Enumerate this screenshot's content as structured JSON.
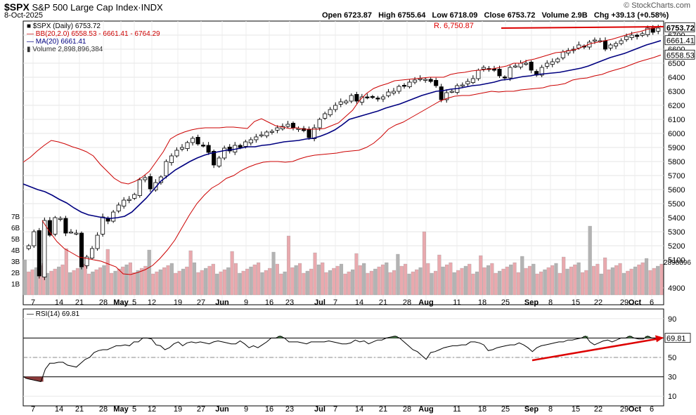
{
  "header": {
    "symbol": "$SPX",
    "name": "S&P 500 Large Cap Index",
    "exchange": "INDX",
    "date": "8-Oct-2025",
    "open": "6723.87",
    "high": "6755.64",
    "low": "6718.09",
    "close": "6753.72",
    "volume": "2.9B",
    "change": "+39.13 (+0.58%)",
    "brand": "© StockCharts.com"
  },
  "legend": {
    "price": "$SPX (Daily) 6753.72",
    "bb": "BB(20,2.0) 6558.53 - 6661.41 - 6764.29",
    "ma": "MA(20) 6661.41",
    "volume": "Volume 2,898,896,384"
  },
  "annotations": {
    "resistance_label": "R. 6,750.87"
  },
  "colors": {
    "bb": "#cc0000",
    "ma": "#000080",
    "vol_up": "#e9a9ae",
    "vol_down": "#b3b3b3",
    "rsi_over": "#4a7c4a",
    "rsi_under": "#8b3a3a",
    "annotation": "#dd0000"
  },
  "chart_data": [
    {
      "type": "candlestick",
      "title": "$SPX S&P 500 Large Cap Index",
      "ylim": [
        4780,
        6800
      ],
      "yticks": [
        4900,
        5100,
        5200,
        5300,
        5400,
        5500,
        5600,
        5700,
        5800,
        5900,
        6000,
        6100,
        6200,
        6300,
        6400,
        6500,
        6600,
        6700
      ],
      "value_labels": [
        "6753.72",
        "6661.41",
        "6558.53"
      ],
      "vol_ticks": [
        "1B",
        "2B",
        "3B",
        "4B",
        "5B",
        "6B",
        "7B"
      ],
      "vol_right_label": "2898896",
      "x_tick_labels": [
        "7",
        "14",
        "21",
        "28",
        "May",
        "5",
        "12",
        "19",
        "27",
        "Jun",
        "9",
        "16",
        "23",
        "Jul",
        "7",
        "14",
        "21",
        "28",
        "Aug",
        "11",
        "18",
        "25",
        "Sep",
        "8",
        "15",
        "22",
        "29",
        "Oct",
        "6"
      ],
      "series_close": [
        5200,
        5300,
        4985,
        5380,
        5275,
        5400,
        5395,
        5290,
        5298,
        5290,
        5050,
        5120,
        5180,
        5275,
        5405,
        5375,
        5440,
        5490,
        5525,
        5530,
        5565,
        5670,
        5685,
        5605,
        5650,
        5690,
        5800,
        5840,
        5880,
        5900,
        5935,
        5965,
        5925,
        5915,
        5865,
        5775,
        5825,
        5895,
        5875,
        5915,
        5900,
        5940,
        5955,
        5975,
        5990,
        6010,
        6015,
        6040,
        6050,
        6065,
        6040,
        6035,
        6020,
        5970,
        6040,
        6100,
        6140,
        6170,
        6200,
        6225,
        6230,
        6270,
        6230,
        6260,
        6255,
        6260,
        6245,
        6260,
        6295,
        6300,
        6335,
        6340,
        6365,
        6380,
        6390,
        6385,
        6370,
        6340,
        6240,
        6290,
        6300,
        6340,
        6345,
        6370,
        6390,
        6450,
        6470,
        6460,
        6450,
        6410,
        6395,
        6470,
        6480,
        6500,
        6500,
        6450,
        6415,
        6470,
        6500,
        6510,
        6530,
        6580,
        6590,
        6600,
        6630,
        6615,
        6650,
        6665,
        6660,
        6600,
        6630,
        6640,
        6660,
        6690,
        6700,
        6690,
        6710,
        6750,
        6720,
        6750
      ],
      "bb_upper": [
        5795,
        5830,
        5875,
        5915,
        5950,
        5940,
        5925,
        5905,
        5890,
        5870,
        5840,
        5780,
        5730,
        5680,
        5650,
        5640,
        5660,
        5690,
        5730,
        5800,
        5870,
        5960,
        5990,
        6010,
        6025,
        6035,
        6040,
        6040,
        6040,
        6045,
        6045,
        6040,
        6035,
        6085,
        6105,
        6080,
        6055,
        6045,
        6035,
        6040,
        6030,
        6030,
        6030,
        6035,
        6055,
        6075,
        6120,
        6165,
        6235,
        6285,
        6320,
        6340,
        6355,
        6375,
        6380,
        6385,
        6390,
        6395,
        6400,
        6400,
        6400,
        6420,
        6430,
        6435,
        6445,
        6450,
        6455,
        6460,
        6470,
        6480,
        6500,
        6500,
        6520,
        6530,
        6545,
        6560,
        6575,
        6580,
        6590,
        6600,
        6620,
        6640,
        6650,
        6660,
        6670,
        6685,
        6700,
        6715,
        6725,
        6740,
        6750,
        6765
      ],
      "ma_20": [
        5640,
        5620,
        5600,
        5585,
        5560,
        5530,
        5505,
        5470,
        5440,
        5420,
        5410,
        5400,
        5395,
        5400,
        5410,
        5440,
        5490,
        5540,
        5600,
        5660,
        5700,
        5740,
        5770,
        5800,
        5825,
        5845,
        5860,
        5870,
        5880,
        5885,
        5895,
        5905,
        5905,
        5915,
        5920,
        5930,
        5940,
        5945,
        5950,
        5960,
        5965,
        5980,
        6000,
        6025,
        6060,
        6100,
        6115,
        6130,
        6145,
        6160,
        6180,
        6195,
        6210,
        6230,
        6250,
        6270,
        6285,
        6300,
        6305,
        6315,
        6320,
        6330,
        6340,
        6345,
        6355,
        6365,
        6380,
        6385,
        6395,
        6405,
        6410,
        6420,
        6425,
        6430,
        6435,
        6445,
        6455,
        6465,
        6480,
        6500,
        6520,
        6540,
        6555,
        6570,
        6590,
        6610,
        6630,
        6645,
        6661
      ],
      "bb_lower": [
        5380,
        5300,
        5230,
        5180,
        5150,
        5120,
        5110,
        5100,
        5090,
        5070,
        5050,
        5000,
        4995,
        5010,
        5030,
        5060,
        5110,
        5170,
        5240,
        5330,
        5420,
        5500,
        5560,
        5610,
        5640,
        5680,
        5700,
        5735,
        5760,
        5780,
        5795,
        5800,
        5800,
        5795,
        5800,
        5820,
        5835,
        5845,
        5850,
        5855,
        5860,
        5870,
        5875,
        5880,
        5900,
        5930,
        5975,
        6030,
        6060,
        6080,
        6110,
        6140,
        6170,
        6200,
        6230,
        6250,
        6265,
        6270,
        6270,
        6280,
        6290,
        6300,
        6295,
        6300,
        6300,
        6310,
        6315,
        6320,
        6325,
        6340,
        6345,
        6355,
        6380,
        6390,
        6395,
        6410,
        6420,
        6440,
        6455,
        6470,
        6490,
        6510,
        6525,
        6540,
        6558
      ],
      "volume_bar_count": 170
    },
    {
      "type": "line",
      "title": "RSI(14) 69.81",
      "ylim": [
        0,
        100
      ],
      "yticks": [
        10,
        30,
        50,
        70,
        90
      ],
      "reference_lines": [
        30,
        50,
        70
      ],
      "last_value_label": "69.81",
      "x_tick_labels": [
        "7",
        "14",
        "21",
        "28",
        "May",
        "5",
        "12",
        "19",
        "27",
        "Jun",
        "9",
        "16",
        "23",
        "Jul",
        "7",
        "14",
        "21",
        "28",
        "Aug",
        "11",
        "18",
        "25",
        "Sep",
        "8",
        "15",
        "22",
        "29",
        "Oct",
        "6"
      ],
      "values": [
        30,
        28,
        27,
        26,
        25,
        38,
        44,
        44,
        45,
        45,
        42,
        41,
        40,
        44,
        48,
        50,
        55,
        57,
        58,
        58,
        60,
        62,
        62,
        63,
        62,
        66,
        66,
        70,
        70,
        69,
        63,
        62,
        58,
        60,
        64,
        66,
        62,
        65,
        66,
        65,
        66,
        65,
        64,
        66,
        67,
        66,
        65,
        64,
        64,
        67,
        64,
        60,
        62,
        60,
        63,
        66,
        70,
        70,
        72,
        70,
        66,
        66,
        66,
        65,
        64,
        66,
        66,
        66,
        66,
        67,
        66,
        65,
        64,
        64,
        65,
        68,
        66,
        67,
        64,
        66,
        68,
        68,
        70,
        71,
        72,
        70,
        66,
        62,
        58,
        56,
        52,
        48,
        55,
        56,
        58,
        60,
        61,
        62,
        62,
        63,
        63,
        66,
        66,
        65,
        63,
        57,
        58,
        60,
        61,
        62,
        63,
        63,
        65,
        63,
        60,
        56,
        60,
        62,
        63,
        64,
        65,
        66,
        66,
        68,
        68,
        69,
        70,
        72,
        66,
        63,
        65,
        67,
        68,
        66,
        68,
        70,
        70,
        72,
        70,
        69,
        69,
        72,
        70,
        70,
        69.81
      ]
    }
  ]
}
